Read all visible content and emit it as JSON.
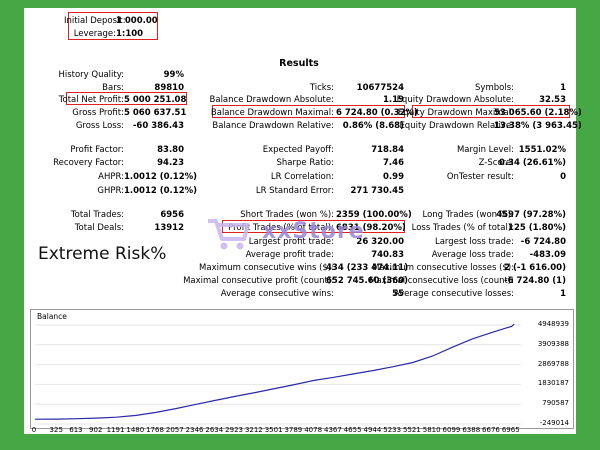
{
  "header": {
    "initial_deposit_label": "Initial Deposit:",
    "initial_deposit_value": "1 000.00",
    "leverage_label": "Leverage:",
    "leverage_value": "1:100",
    "title": "Results"
  },
  "stats": {
    "history_quality": {
      "label": "History Quality:",
      "value": "99%"
    },
    "bars": {
      "label": "Bars:",
      "value": "89810"
    },
    "total_net_profit": {
      "label": "Total Net Profit:",
      "value": "5 000 251.08"
    },
    "gross_profit": {
      "label": "Gross Profit:",
      "value": "5 060 637.51"
    },
    "gross_loss": {
      "label": "Gross Loss:",
      "value": "-60 386.43"
    },
    "profit_factor": {
      "label": "Profit Factor:",
      "value": "83.80"
    },
    "recovery_factor": {
      "label": "Recovery Factor:",
      "value": "94.23"
    },
    "ahpr": {
      "label": "AHPR:",
      "value": "1.0012 (0.12%)"
    },
    "ghpr": {
      "label": "GHPR:",
      "value": "1.0012 (0.12%)"
    },
    "total_trades": {
      "label": "Total Trades:",
      "value": "6956"
    },
    "total_deals": {
      "label": "Total Deals:",
      "value": "13912"
    },
    "ticks": {
      "label": "Ticks:",
      "value": "10677524"
    },
    "balance_dd_abs": {
      "label": "Balance Drawdown Absolute:",
      "value": "1.19"
    },
    "balance_dd_max": {
      "label": "Balance Drawdown Maximal:",
      "value": "6 724.80 (0.32%)"
    },
    "balance_dd_rel": {
      "label": "Balance Drawdown Relative:",
      "value": "0.86% (8.68)"
    },
    "expected_payoff": {
      "label": "Expected Payoff:",
      "value": "718.84"
    },
    "sharpe_ratio": {
      "label": "Sharpe Ratio:",
      "value": "7.46"
    },
    "lr_correlation": {
      "label": "LR Correlation:",
      "value": "0.99"
    },
    "lr_std_error": {
      "label": "LR Standard Error:",
      "value": "271 730.45"
    },
    "short_trades": {
      "label": "Short Trades (won %):",
      "value": "2359 (100.00%)"
    },
    "profit_trades": {
      "label": "Profit Trades (% of total):",
      "value": "6831 (98.20%)"
    },
    "largest_profit": {
      "label": "Largest profit trade:",
      "value": "26 320.00"
    },
    "average_profit": {
      "label": "Average profit trade:",
      "value": "740.83"
    },
    "max_consec_wins": {
      "label": "Maximum consecutive wins ($):",
      "value": "434 (233 474.11)"
    },
    "max_consec_profit": {
      "label": "Maximal consecutive profit (count):",
      "value": "652 745.60 (360)"
    },
    "avg_consec_wins": {
      "label": "Average consecutive wins:",
      "value": "55"
    },
    "symbols": {
      "label": "Symbols:",
      "value": "1"
    },
    "equity_dd_abs": {
      "label": "Equity Drawdown Absolute:",
      "value": "32.53"
    },
    "equity_dd_max": {
      "label": "Equity Drawdown Maximal:",
      "value": "53 065.60 (2.18%)"
    },
    "equity_dd_rel": {
      "label": "Equity Drawdown Relative:",
      "value": "13.38% (3 963.45)"
    },
    "margin_level": {
      "label": "Margin Level:",
      "value": "1551.02%"
    },
    "z_score": {
      "label": "Z-Score:",
      "value": "0.34 (26.61%)"
    },
    "ontester": {
      "label": "OnTester result:",
      "value": "0"
    },
    "long_trades": {
      "label": "Long Trades (won %):",
      "value": "4597 (97.28%)"
    },
    "loss_trades": {
      "label": "Loss Trades (% of total):",
      "value": "125 (1.80%)"
    },
    "largest_loss": {
      "label": "Largest loss trade:",
      "value": "-6 724.80"
    },
    "average_loss": {
      "label": "Average loss trade:",
      "value": "-483.09"
    },
    "max_consec_losses": {
      "label": "Maximum consecutive losses ($):",
      "value": "2 (-1 616.00)"
    },
    "max_consec_loss": {
      "label": "Maximal consecutive loss (count):",
      "value": "-6 724.80 (1)"
    },
    "avg_consec_losses": {
      "label": "Average consecutive losses:",
      "value": "1"
    }
  },
  "overlay": {
    "caption": "Extreme Risk%",
    "watermark_text": "xxStore"
  },
  "chart_data": {
    "type": "line",
    "title": "Balance",
    "xlabel": "",
    "ylabel": "",
    "x_ticks": [
      "0",
      "325",
      "613",
      "902",
      "1191",
      "1480",
      "1768",
      "2057",
      "2346",
      "2634",
      "2923",
      "3212",
      "3501",
      "3789",
      "4078",
      "4367",
      "4655",
      "4944",
      "5233",
      "5521",
      "5810",
      "6099",
      "6388",
      "6676",
      "6965"
    ],
    "y_ticks": [
      "4948939",
      "3909388",
      "2869788",
      "1830187",
      "790587",
      "-249014"
    ],
    "xlim": [
      0,
      7100
    ],
    "ylim": [
      -249014,
      5000000
    ],
    "series": [
      {
        "color": "#2a2aa8",
        "x": [
          0,
          325,
          613,
          902,
          1191,
          1480,
          1768,
          2057,
          2346,
          2634,
          2923,
          3212,
          3501,
          3789,
          4078,
          4367,
          4655,
          4944,
          5233,
          5521,
          5810,
          6099,
          6388,
          6676,
          6965,
          7000
        ],
        "y": [
          1000,
          10000,
          30000,
          60000,
          110000,
          200000,
          360000,
          560000,
          780000,
          990000,
          1200000,
          1400000,
          1610000,
          1820000,
          2040000,
          2200000,
          2380000,
          2560000,
          2760000,
          2980000,
          3320000,
          3780000,
          4220000,
          4560000,
          4880000,
          5000000
        ]
      }
    ]
  },
  "colors": {
    "background": "#45a845",
    "highlight_box": "#e02020",
    "balance_line": "#2a2aa8"
  }
}
